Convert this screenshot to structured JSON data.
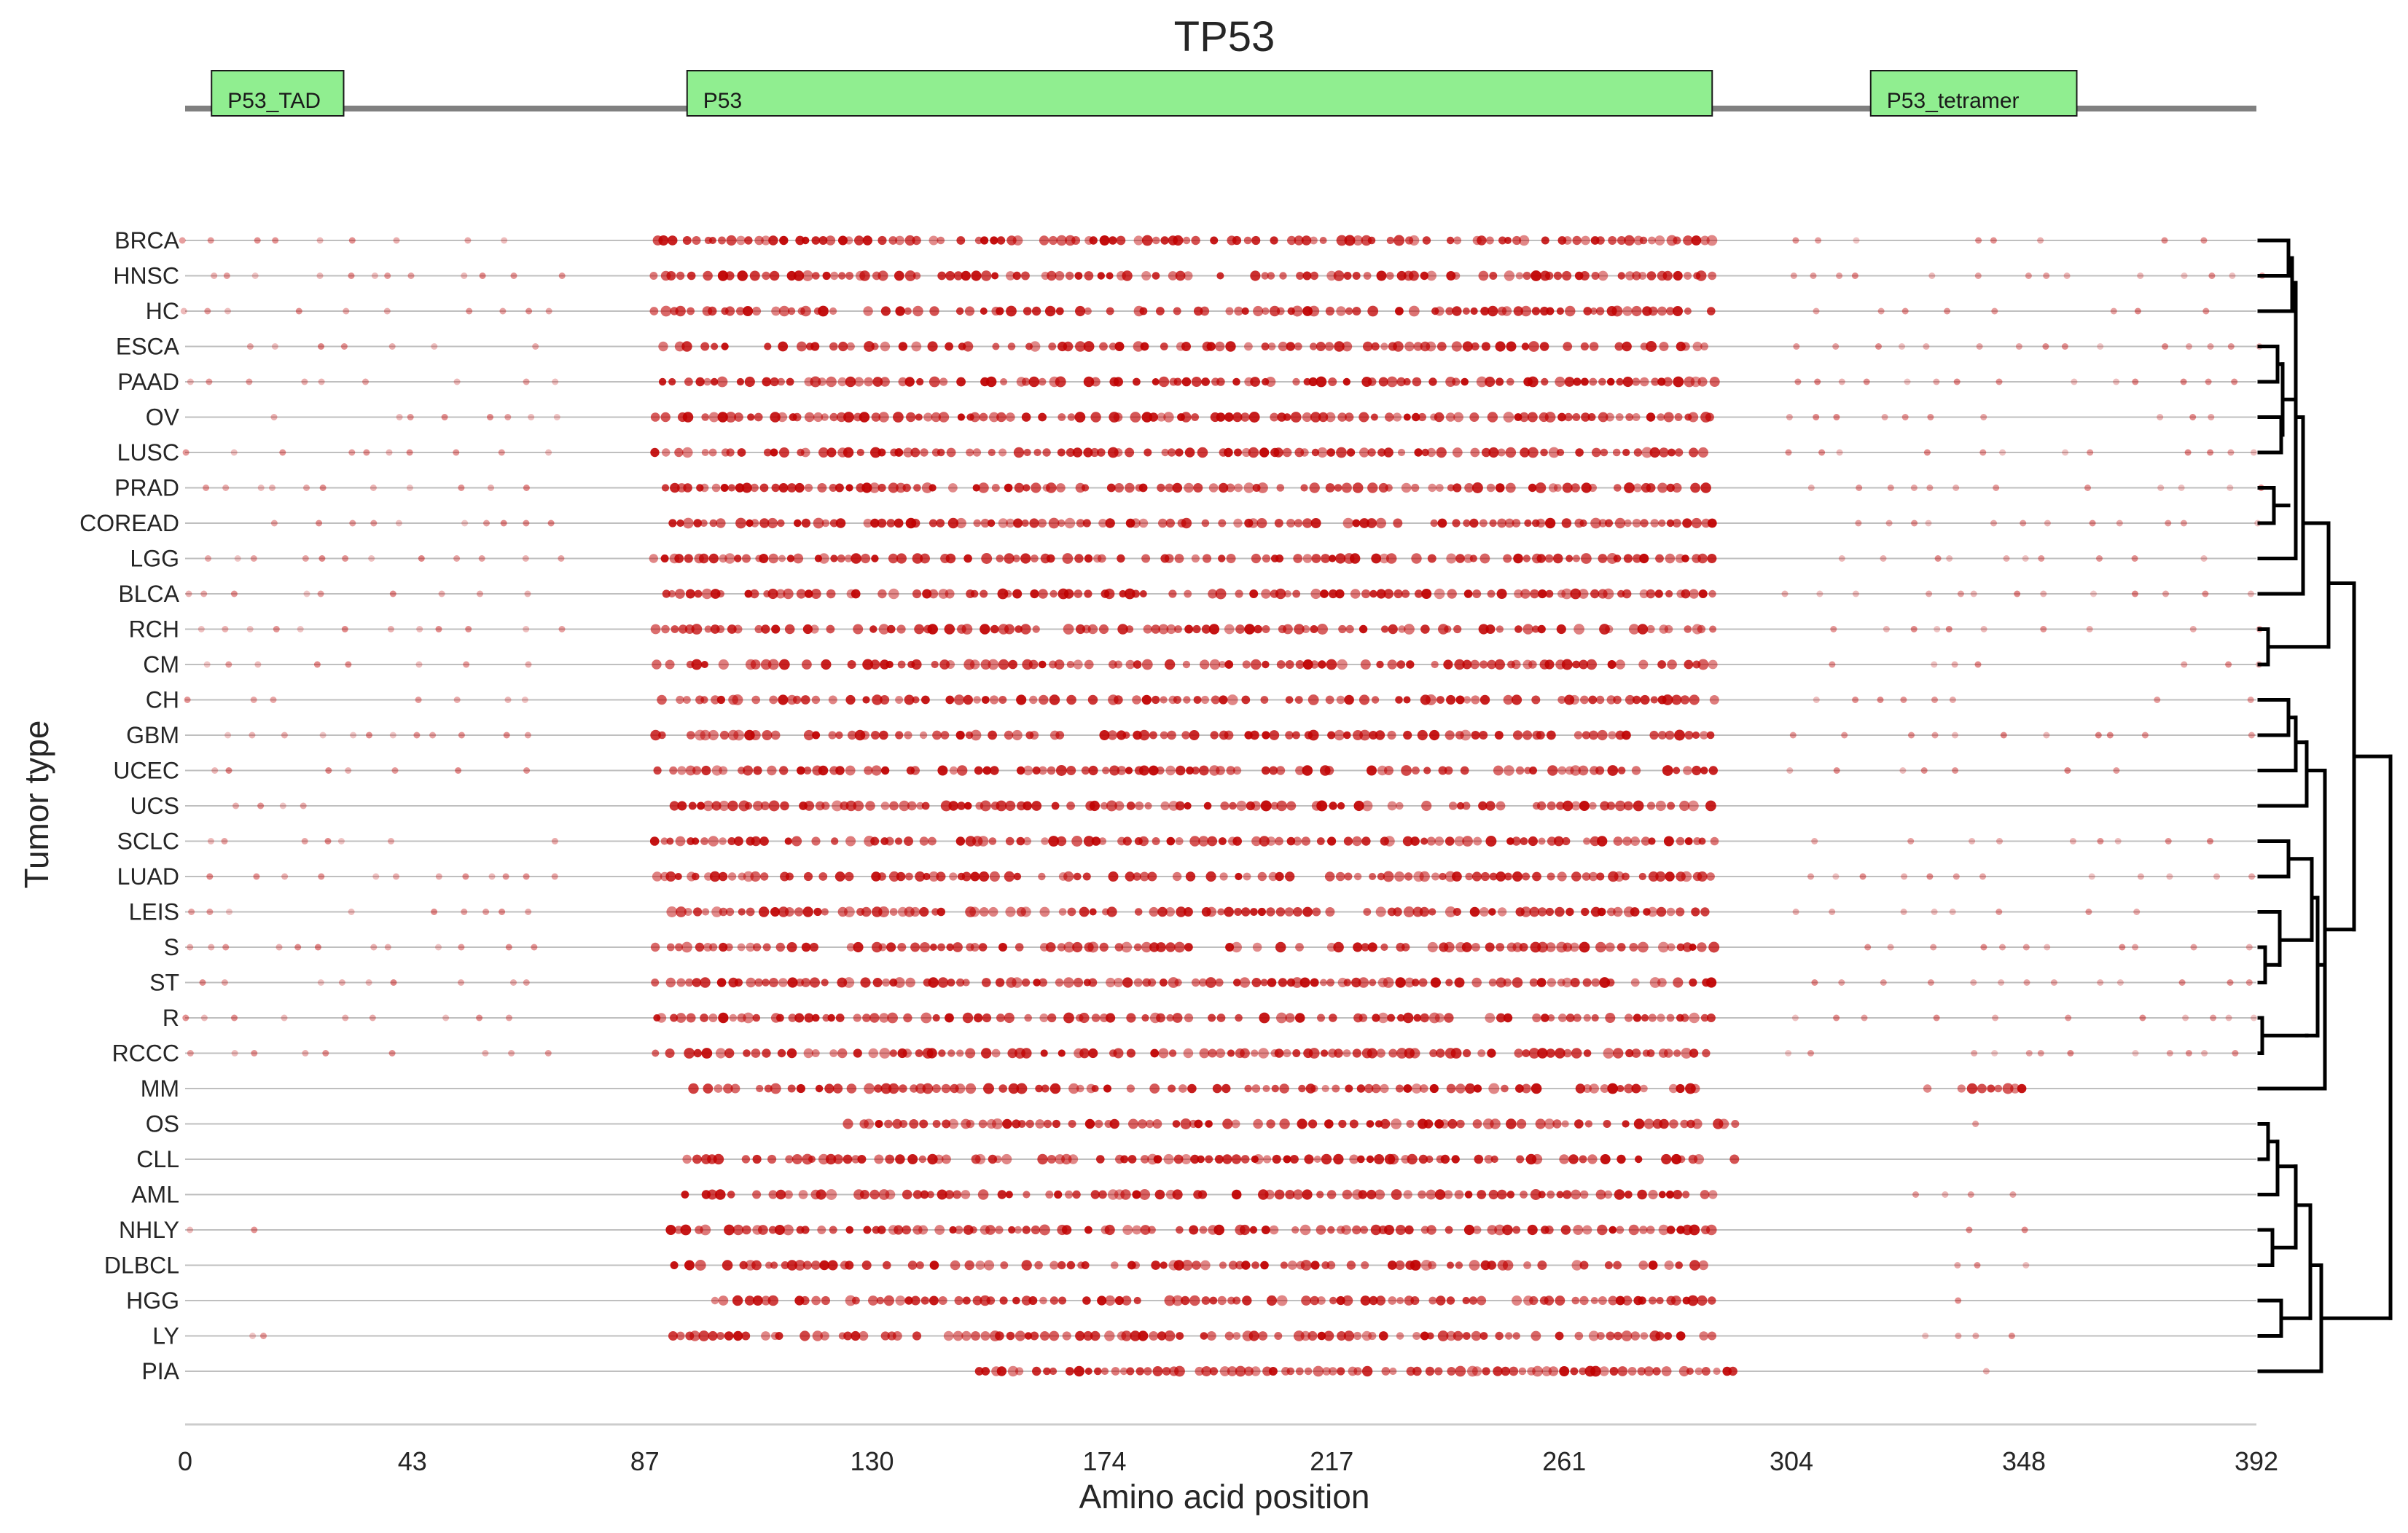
{
  "chart_data": {
    "type": "scatter",
    "title": "TP53",
    "xlabel": "Amino acid position",
    "ylabel": "Tumor type",
    "xlim": [
      0,
      392
    ],
    "x_ticks": [
      0,
      43,
      87,
      130,
      174,
      217,
      261,
      304,
      348,
      392
    ],
    "domains": [
      {
        "name": "P53_TAD",
        "start": 5,
        "end": 30
      },
      {
        "name": "P53",
        "start": 95,
        "end": 289
      },
      {
        "name": "P53_tetramer",
        "start": 319,
        "end": 358
      }
    ],
    "tumor_types": [
      "BRCA",
      "HNSC",
      "HC",
      "ESCA",
      "PAAD",
      "OV",
      "LUSC",
      "PRAD",
      "COREAD",
      "LGG",
      "BLCA",
      "RCH",
      "CM",
      "CH",
      "GBM",
      "UCEC",
      "UCS",
      "SCLC",
      "LUAD",
      "LEIS",
      "S",
      "ST",
      "R",
      "RCCC",
      "MM",
      "OS",
      "CLL",
      "AML",
      "NHLY",
      "DLBCL",
      "HGG",
      "LY",
      "PIA"
    ],
    "dendrogram_clusters": [
      [
        "BRCA",
        "HNSC",
        "HC",
        "ESCA",
        "PAAD",
        "OV",
        "LUSC",
        "PRAD",
        "COREAD",
        "LGG",
        "BLCA",
        "RCH",
        "CM"
      ],
      [
        "CH",
        "GBM",
        "UCEC",
        "UCS",
        "SCLC",
        "LUAD",
        "LEIS",
        "S",
        "ST",
        "R",
        "RCCC",
        "MM"
      ],
      [
        "OS",
        "CLL",
        "AML",
        "NHLY",
        "DLBCL",
        "HGG",
        "LY",
        "PIA"
      ]
    ],
    "mutation_regions": {
      "BRCA": [
        [
          0,
          70,
          "sparse"
        ],
        [
          89,
          289,
          "dense"
        ],
        [
          304,
          392,
          "sparse"
        ]
      ],
      "HNSC": [
        [
          0,
          70,
          "sparse"
        ],
        [
          89,
          289,
          "dense"
        ],
        [
          304,
          392,
          "sparse"
        ]
      ],
      "HC": [
        [
          0,
          70,
          "sparse"
        ],
        [
          89,
          289,
          "dense"
        ],
        [
          304,
          392,
          "sparse"
        ]
      ],
      "ESCA": [
        [
          0,
          70,
          "sparse"
        ],
        [
          89,
          289,
          "dense"
        ],
        [
          304,
          392,
          "sparse"
        ]
      ],
      "PAAD": [
        [
          0,
          70,
          "sparse"
        ],
        [
          89,
          289,
          "dense"
        ],
        [
          304,
          392,
          "sparse"
        ]
      ],
      "OV": [
        [
          0,
          70,
          "sparse"
        ],
        [
          89,
          289,
          "dense"
        ],
        [
          304,
          392,
          "sparse"
        ]
      ],
      "LUSC": [
        [
          0,
          70,
          "sparse"
        ],
        [
          89,
          289,
          "dense"
        ],
        [
          304,
          392,
          "sparse"
        ]
      ],
      "PRAD": [
        [
          0,
          70,
          "sparse"
        ],
        [
          89,
          289,
          "dense"
        ],
        [
          304,
          392,
          "sparse"
        ]
      ],
      "COREAD": [
        [
          0,
          70,
          "sparse"
        ],
        [
          89,
          289,
          "dense"
        ],
        [
          304,
          392,
          "sparse"
        ]
      ],
      "LGG": [
        [
          0,
          70,
          "sparse"
        ],
        [
          89,
          289,
          "dense"
        ],
        [
          304,
          392,
          "sparse"
        ]
      ],
      "BLCA": [
        [
          0,
          70,
          "sparse"
        ],
        [
          89,
          289,
          "dense"
        ],
        [
          304,
          392,
          "sparse"
        ]
      ],
      "RCH": [
        [
          0,
          70,
          "sparse"
        ],
        [
          89,
          289,
          "dense"
        ],
        [
          304,
          392,
          "sparse"
        ]
      ],
      "CM": [
        [
          0,
          70,
          "sparse"
        ],
        [
          89,
          289,
          "dense"
        ],
        [
          304,
          392,
          "sparse"
        ]
      ],
      "CH": [
        [
          0,
          70,
          "sparse"
        ],
        [
          89,
          289,
          "dense"
        ],
        [
          304,
          392,
          "sparse"
        ]
      ],
      "GBM": [
        [
          0,
          70,
          "sparse"
        ],
        [
          89,
          289,
          "dense"
        ],
        [
          304,
          392,
          "sparse"
        ]
      ],
      "UCEC": [
        [
          0,
          70,
          "sparse"
        ],
        [
          89,
          289,
          "dense"
        ],
        [
          304,
          392,
          "sparse"
        ]
      ],
      "UCS": [
        [
          10,
          22,
          "sparse"
        ],
        [
          91,
          289,
          "dense"
        ]
      ],
      "SCLC": [
        [
          0,
          70,
          "sparse"
        ],
        [
          89,
          289,
          "dense"
        ],
        [
          304,
          392,
          "sparse"
        ]
      ],
      "LUAD": [
        [
          0,
          70,
          "sparse"
        ],
        [
          89,
          289,
          "dense"
        ],
        [
          304,
          392,
          "sparse"
        ]
      ],
      "LEIS": [
        [
          0,
          70,
          "sparse"
        ],
        [
          89,
          289,
          "dense"
        ],
        [
          304,
          392,
          "sparse"
        ]
      ],
      "S": [
        [
          0,
          70,
          "sparse"
        ],
        [
          89,
          289,
          "dense"
        ],
        [
          304,
          392,
          "sparse"
        ]
      ],
      "ST": [
        [
          0,
          70,
          "sparse"
        ],
        [
          89,
          289,
          "dense"
        ],
        [
          304,
          392,
          "sparse"
        ]
      ],
      "R": [
        [
          0,
          70,
          "sparse"
        ],
        [
          89,
          289,
          "dense"
        ],
        [
          304,
          392,
          "sparse"
        ]
      ],
      "RCCC": [
        [
          0,
          70,
          "sparse"
        ],
        [
          89,
          289,
          "dense"
        ],
        [
          304,
          392,
          "sparse"
        ]
      ],
      "MM": [
        [
          96,
          286,
          "dense"
        ],
        [
          330,
          348,
          "dense"
        ]
      ],
      "OS": [
        [
          125,
          293,
          "dense"
        ],
        [
          340,
          340,
          "sparse"
        ]
      ],
      "CLL": [
        [
          95,
          293,
          "dense"
        ]
      ],
      "AML": [
        [
          95,
          289,
          "dense"
        ],
        [
          327,
          347,
          "sparse"
        ]
      ],
      "NHLY": [
        [
          0,
          0,
          "sparse"
        ],
        [
          14,
          14,
          "sparse"
        ],
        [
          92,
          289,
          "dense"
        ],
        [
          325,
          347,
          "sparse"
        ]
      ],
      "DLBCL": [
        [
          91,
          289,
          "dense"
        ],
        [
          330,
          348,
          "sparse"
        ]
      ],
      "HGG": [
        [
          100,
          289,
          "dense"
        ],
        [
          325,
          345,
          "sparse"
        ]
      ],
      "LY": [
        [
          14,
          14,
          "sparse"
        ],
        [
          92,
          289,
          "dense"
        ],
        [
          325,
          345,
          "sparse"
        ]
      ],
      "PIA": [
        [
          150,
          293,
          "dense"
        ],
        [
          340,
          340,
          "sparse"
        ]
      ]
    },
    "colors": {
      "domain_fill": "#90ee90",
      "domain_stroke": "#1a1a1a",
      "backbone": "#808080",
      "dot": "#c00000",
      "row_line": "#bfbfbf",
      "dendrogram": "#000000"
    }
  }
}
